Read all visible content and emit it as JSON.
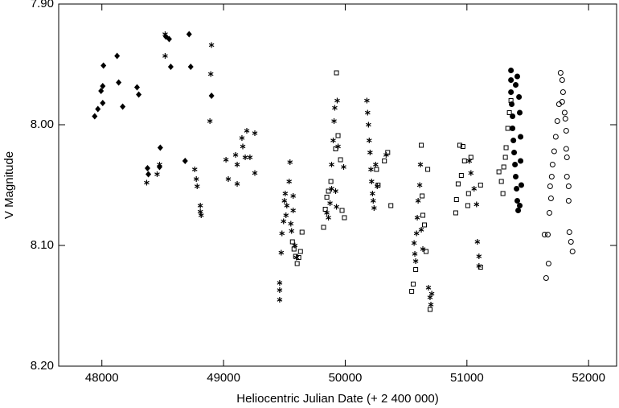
{
  "chart_data": {
    "type": "scatter",
    "x_label": "Heliocentric Julian Date (+ 2 400 000)",
    "y_label": "V Magnitude",
    "xlim": [
      47645,
      52230
    ],
    "xticks": [
      48000,
      49000,
      50000,
      51000,
      52000
    ],
    "ylim": [
      7.9,
      8.2
    ],
    "y_inverted": true,
    "yticks": [
      {
        "value": 7.9,
        "label": "7.90"
      },
      {
        "value": 8.0,
        "label": "8.00"
      },
      {
        "value": 8.1,
        "label": "8.10"
      },
      {
        "value": 8.2,
        "label": "8.20"
      }
    ],
    "series": [
      {
        "marker": "diamond",
        "color": "#000000",
        "x": [
          47941,
          47967,
          47993,
          48007,
          48013,
          48007,
          48125,
          48138,
          48171,
          48289,
          48303,
          48375,
          48382,
          48474,
          48480,
          48526,
          48553,
          48566,
          48684,
          48717,
          48730,
          48901
        ],
        "y": [
          7.993,
          7.987,
          7.972,
          7.968,
          7.951,
          7.982,
          7.943,
          7.965,
          7.985,
          7.969,
          7.975,
          8.036,
          8.041,
          8.035,
          8.019,
          7.927,
          7.929,
          7.952,
          8.03,
          7.925,
          7.952,
          7.976
        ]
      },
      {
        "marker": "asterisk",
        "color": "#000000",
        "x": [
          48368,
          48454,
          48474,
          48520,
          48520,
          48763,
          48776,
          48783,
          48809,
          48809,
          48816,
          48901,
          48895,
          48888,
          49020,
          49039,
          49099,
          49112,
          49112,
          49151,
          49158,
          49178,
          49191,
          49217,
          49257,
          49257,
          49461,
          49461,
          49461,
          49474,
          49480,
          49493,
          49500,
          49507,
          49513,
          49520,
          49539,
          49546,
          49553,
          49559,
          49572,
          49572,
          49586,
          49599,
          49849,
          49862,
          49875,
          49888,
          49888,
          49901,
          49908,
          49914,
          49921,
          49928,
          49934,
          49941,
          49987,
          50178,
          50184,
          50191,
          50197,
          50204,
          50211,
          50217,
          50224,
          50230,
          50237,
          50250,
          50263,
          50336,
          50566,
          50572,
          50579,
          50586,
          50592,
          50599,
          50612,
          50618,
          50625,
          50638,
          50684,
          50697,
          50704,
          50711,
          51020,
          51033,
          51059,
          51079,
          51086,
          51099,
          51099
        ],
        "y": [
          8.048,
          8.041,
          8.033,
          7.925,
          7.943,
          8.037,
          8.045,
          8.051,
          8.067,
          8.072,
          8.075,
          7.934,
          7.958,
          7.997,
          8.029,
          8.045,
          8.025,
          8.033,
          8.049,
          8.011,
          8.018,
          8.027,
          8.005,
          8.027,
          8.04,
          8.007,
          8.131,
          8.137,
          8.145,
          8.106,
          8.09,
          8.08,
          8.063,
          8.057,
          8.075,
          8.067,
          8.047,
          8.031,
          8.082,
          8.088,
          8.071,
          8.059,
          8.1,
          8.11,
          8.073,
          8.077,
          8.065,
          8.053,
          8.033,
          8.013,
          7.997,
          7.986,
          8.055,
          8.068,
          7.98,
          8.018,
          8.035,
          7.98,
          7.99,
          8.0,
          8.013,
          8.023,
          8.037,
          8.047,
          8.057,
          8.063,
          8.069,
          8.033,
          8.051,
          8.025,
          8.098,
          8.107,
          8.113,
          8.09,
          8.077,
          8.063,
          8.05,
          8.033,
          8.087,
          8.103,
          8.135,
          8.143,
          8.149,
          8.14,
          8.03,
          8.04,
          8.053,
          8.066,
          8.097,
          8.109,
          8.117
        ]
      },
      {
        "marker": "square",
        "color": "#000000",
        "x": [
          49566,
          49579,
          49592,
          49605,
          49618,
          49632,
          49645,
          49822,
          49836,
          49849,
          49862,
          49882,
          49921,
          49928,
          49941,
          49961,
          49974,
          49993,
          50257,
          50270,
          50322,
          50349,
          50375,
          50546,
          50559,
          50579,
          50625,
          50632,
          50638,
          50651,
          50664,
          50678,
          50697,
          50908,
          50914,
          50928,
          50941,
          50954,
          50967,
          50980,
          51007,
          51013,
          51033,
          51112,
          51112,
          51263,
          51283,
          51296,
          51303,
          51316,
          51322,
          51336,
          51349,
          51362
        ],
        "y": [
          8.097,
          8.103,
          8.109,
          8.115,
          8.11,
          8.105,
          8.089,
          8.085,
          8.07,
          8.06,
          8.055,
          8.047,
          8.02,
          7.957,
          8.009,
          8.029,
          8.071,
          8.077,
          8.037,
          8.05,
          8.03,
          8.023,
          8.067,
          8.138,
          8.132,
          8.12,
          8.017,
          8.059,
          8.075,
          8.083,
          8.105,
          8.037,
          8.153,
          8.073,
          8.062,
          8.049,
          8.017,
          8.042,
          8.018,
          8.03,
          8.067,
          8.057,
          8.027,
          8.118,
          8.05,
          8.039,
          8.047,
          8.057,
          8.035,
          8.027,
          8.019,
          8.003,
          7.99,
          7.98
        ]
      },
      {
        "marker": "circle",
        "filled": true,
        "color": "#000000",
        "x": [
          51362,
          51362,
          51362,
          51368,
          51375,
          51375,
          51382,
          51388,
          51395,
          51401,
          51408,
          51414,
          51421,
          51428,
          51434,
          51441,
          51414,
          51401,
          51441,
          51447,
          51434
        ],
        "y": [
          7.955,
          7.963,
          7.973,
          7.983,
          7.993,
          8.003,
          8.013,
          8.023,
          8.033,
          8.043,
          8.053,
          8.063,
          8.071,
          7.977,
          7.99,
          8.01,
          7.96,
          7.967,
          8.03,
          8.05,
          8.067
        ]
      },
      {
        "marker": "circle",
        "filled": false,
        "color": "#000000",
        "x": [
          51770,
          51783,
          51790,
          51757,
          51743,
          51730,
          51717,
          51704,
          51697,
          51684,
          51691,
          51678,
          51665,
          51783,
          51803,
          51809,
          51816,
          51816,
          51822,
          51822,
          51836,
          51836,
          51842,
          51855,
          51868,
          51638,
          51651,
          51671
        ],
        "y": [
          7.957,
          7.963,
          7.973,
          7.983,
          7.997,
          8.01,
          8.022,
          8.033,
          8.043,
          8.051,
          8.061,
          8.073,
          8.091,
          7.981,
          7.99,
          7.995,
          8.005,
          8.02,
          8.027,
          8.043,
          8.051,
          8.063,
          8.089,
          8.097,
          8.105,
          8.091,
          8.127,
          8.115
        ]
      }
    ]
  }
}
